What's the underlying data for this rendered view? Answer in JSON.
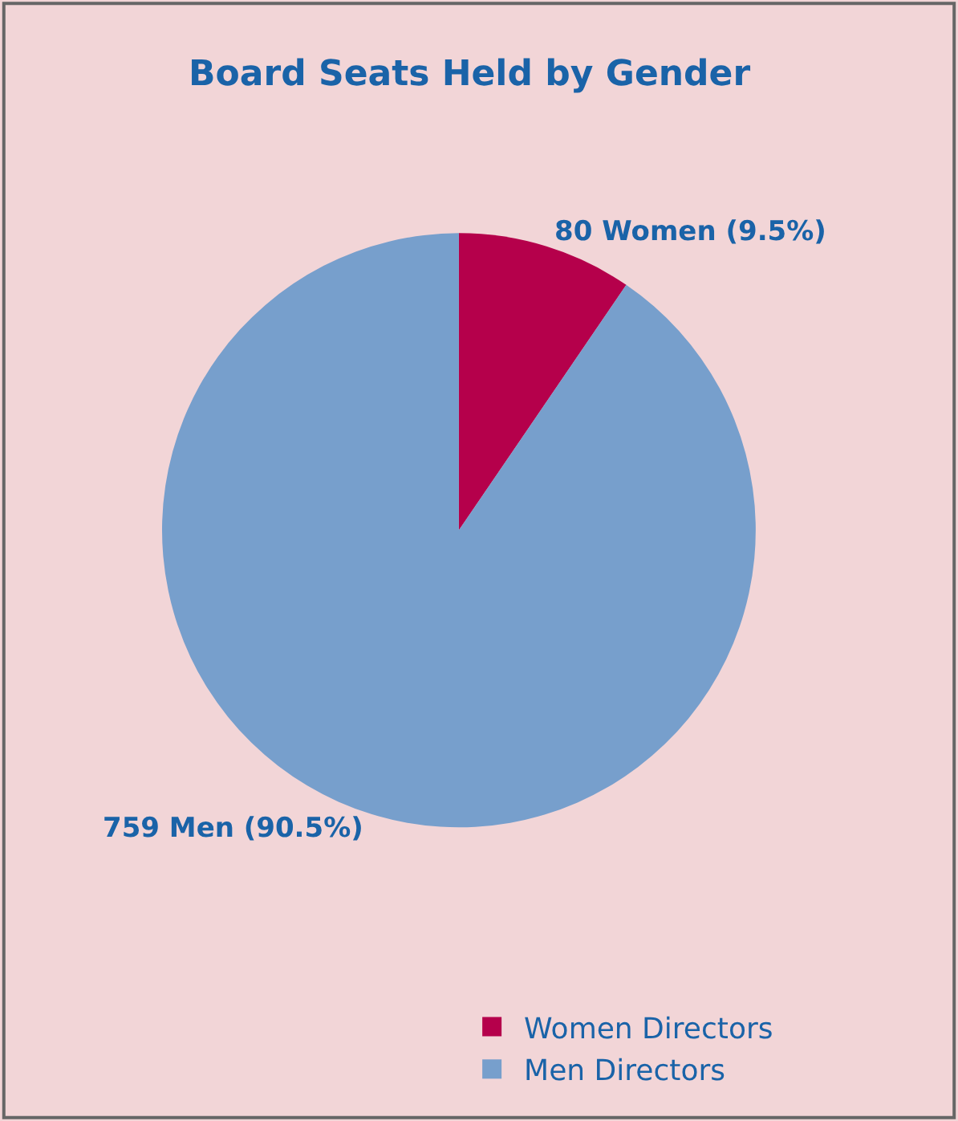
{
  "chart_data": {
    "type": "pie",
    "title": "Board Seats Held by Gender",
    "categories": [
      "Women Directors",
      "Men Directors"
    ],
    "values": [
      80,
      759
    ],
    "colors": [
      "#b5004b",
      "#779fcc"
    ],
    "value_labels": [
      "80 Women (9.5%)",
      "759 Men (90.5%)"
    ],
    "legend": "bottom right"
  }
}
